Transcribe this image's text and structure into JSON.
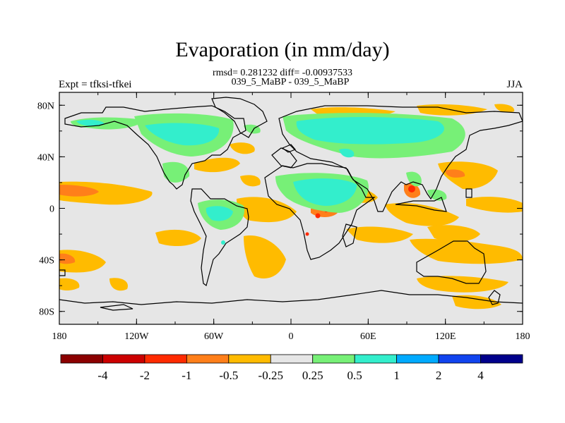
{
  "chart_data": {
    "type": "heatmap",
    "title": "Evaporation (in mm/day)",
    "stats_line1": "rmsd= 0.281232 diff= -0.00937533",
    "stats_line2": "039_5_MaBP - 039_5_MaBP",
    "left_label": "Expt = tfksi-tfkei",
    "right_label": "JJA",
    "x_tick_labels": [
      "180",
      "120W",
      "60W",
      "0",
      "60E",
      "120E",
      "180"
    ],
    "y_tick_labels": [
      "80N",
      "40N",
      "0",
      "40S",
      "80S"
    ],
    "colorbar": {
      "labels": [
        "-4",
        "-2",
        "-1",
        "-0.5",
        "-0.25",
        "0.25",
        "0.5",
        "1",
        "2",
        "4"
      ],
      "colors": [
        "#8b0000",
        "#cc0000",
        "#ff2a00",
        "#ff7f1a",
        "#ffbb00",
        "#e6e6e6",
        "#77f077",
        "#33eecc",
        "#00aaff",
        "#1144ee",
        "#00008b"
      ]
    },
    "field_colors": {
      "background": "#e6e6e6",
      "negative_weak": "#ffbb00",
      "negative_mid": "#ff7f1a",
      "negative_strong": "#ff2a00",
      "positive_weak": "#77f077",
      "positive_mid": "#33eecc"
    }
  }
}
